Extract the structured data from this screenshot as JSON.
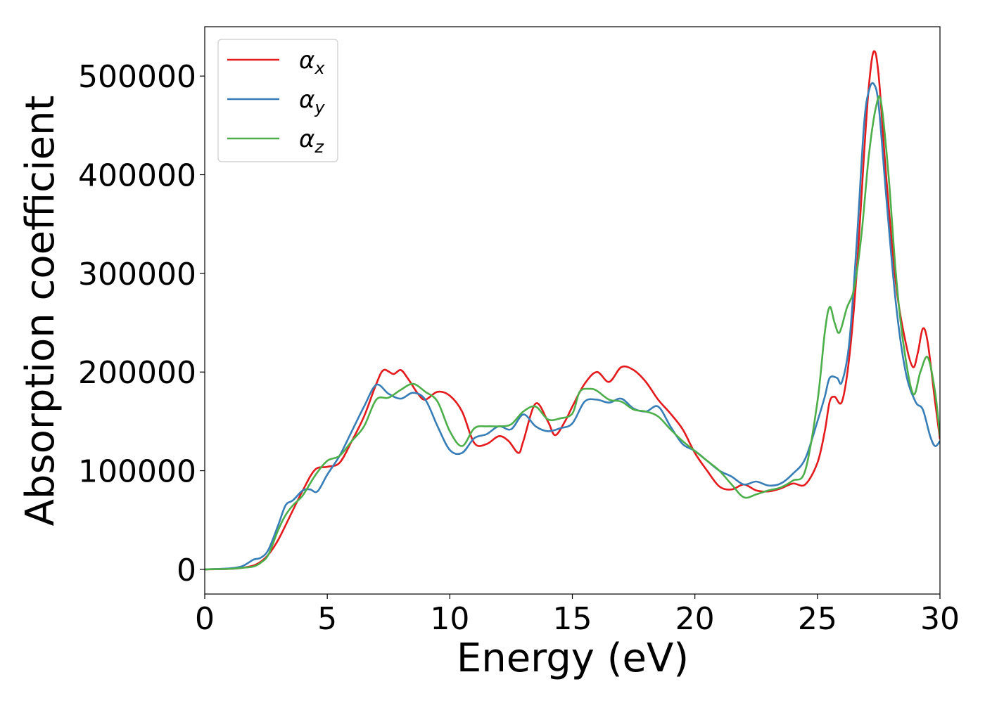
{
  "chart_data": {
    "type": "line",
    "xlabel": "Energy (eV)",
    "ylabel": "Absorption coefficient",
    "xlim": [
      0,
      30
    ],
    "ylim": [
      -25000,
      550000
    ],
    "xticks": [
      0,
      5,
      10,
      15,
      20,
      25,
      30
    ],
    "yticks": [
      0,
      100000,
      200000,
      300000,
      400000,
      500000
    ],
    "grid": false,
    "legend": "top-left",
    "series": [
      {
        "name": "α",
        "subscript": "x",
        "color": "#e41a1c",
        "x": [
          0,
          1,
          1.5,
          2,
          2.3,
          2.6,
          3,
          3.5,
          4,
          4.5,
          5,
          5.5,
          6,
          6.5,
          7,
          7.3,
          7.7,
          8,
          8.3,
          8.7,
          9,
          9.5,
          10,
          10.5,
          11,
          11.5,
          12,
          12.4,
          12.8,
          13,
          13.5,
          14,
          14.3,
          14.7,
          15,
          15.5,
          16,
          16.5,
          17,
          17.5,
          18,
          18.5,
          19,
          19.5,
          20,
          20.5,
          21,
          21.5,
          22,
          22.5,
          23,
          23.5,
          24,
          24.5,
          25,
          25.3,
          25.5,
          25.7,
          26,
          26.3,
          26.6,
          26.9,
          27.1,
          27.3,
          27.5,
          27.8,
          28.2,
          28.6,
          28.9,
          29.1,
          29.3,
          29.5,
          29.8,
          30
        ],
        "y": [
          0,
          500,
          1500,
          4000,
          8000,
          15000,
          30000,
          55000,
          80000,
          101000,
          104000,
          108000,
          130000,
          155000,
          188000,
          202000,
          198000,
          202000,
          193000,
          178000,
          172000,
          180000,
          176000,
          160000,
          128000,
          127000,
          135000,
          130000,
          118000,
          130000,
          168000,
          150000,
          136000,
          150000,
          165000,
          188000,
          200000,
          190000,
          205000,
          202000,
          190000,
          172000,
          158000,
          142000,
          118000,
          100000,
          84000,
          81000,
          86000,
          80000,
          79000,
          82000,
          87000,
          86000,
          108000,
          140000,
          170000,
          175000,
          170000,
          215000,
          300000,
          420000,
          490000,
          525000,
          500000,
          400000,
          290000,
          230000,
          205000,
          220000,
          244000,
          230000,
          170000,
          132000
        ]
      },
      {
        "name": "α",
        "subscript": "y",
        "color": "#377eb8",
        "x": [
          0,
          1,
          1.5,
          1.8,
          2,
          2.3,
          2.6,
          3,
          3.3,
          3.6,
          4,
          4.3,
          4.6,
          5,
          5.5,
          6,
          6.5,
          7,
          7.5,
          8,
          8.5,
          9,
          9.5,
          10,
          10.5,
          11,
          11.5,
          12,
          12.5,
          13,
          13.5,
          14,
          14.5,
          15,
          15.5,
          16,
          16.5,
          17,
          17.5,
          18,
          18.5,
          19,
          19.5,
          20,
          20.5,
          21,
          21.5,
          22,
          22.5,
          23,
          23.5,
          24,
          24.5,
          25,
          25.3,
          25.5,
          25.8,
          26,
          26.3,
          26.6,
          26.9,
          27.1,
          27.3,
          27.5,
          27.8,
          28.2,
          28.6,
          29,
          29.3,
          29.6,
          29.8,
          30
        ],
        "y": [
          0,
          1000,
          3000,
          7000,
          10000,
          12000,
          20000,
          45000,
          65000,
          70000,
          80000,
          81000,
          79000,
          96000,
          115000,
          140000,
          165000,
          187000,
          178000,
          173000,
          179000,
          172000,
          145000,
          121000,
          118000,
          133000,
          137000,
          145000,
          142000,
          157000,
          145000,
          140000,
          143000,
          148000,
          170000,
          172000,
          169000,
          173000,
          163000,
          160000,
          165000,
          145000,
          127000,
          120000,
          110000,
          100000,
          94000,
          86000,
          89000,
          85000,
          87000,
          97000,
          112000,
          150000,
          175000,
          194000,
          194000,
          190000,
          230000,
          330000,
          450000,
          485000,
          492000,
          470000,
          380000,
          270000,
          200000,
          170000,
          162000,
          135000,
          125000,
          130000
        ]
      },
      {
        "name": "α",
        "subscript": "z",
        "color": "#4daf4a",
        "x": [
          0,
          1,
          1.5,
          2,
          2.3,
          2.6,
          3,
          3.3,
          3.6,
          4,
          4.5,
          5,
          5.5,
          6,
          6.5,
          7,
          7.5,
          8,
          8.5,
          9,
          9.5,
          10,
          10.5,
          11,
          11.5,
          12,
          12.5,
          13,
          13.5,
          14,
          14.5,
          15,
          15.3,
          15.7,
          16,
          16.5,
          17,
          17.5,
          18,
          18.5,
          19,
          19.5,
          20,
          20.5,
          21,
          21.5,
          22,
          22.5,
          23,
          23.5,
          24,
          24.5,
          25,
          25.3,
          25.5,
          25.7,
          25.9,
          26.2,
          26.5,
          26.8,
          27.1,
          27.4,
          27.6,
          27.9,
          28.2,
          28.5,
          28.9,
          29.2,
          29.5,
          29.8,
          30
        ],
        "y": [
          0,
          500,
          1500,
          3000,
          7000,
          15000,
          40000,
          55000,
          65000,
          75000,
          95000,
          110000,
          115000,
          130000,
          145000,
          172000,
          174000,
          182000,
          188000,
          180000,
          170000,
          140000,
          125000,
          143000,
          145000,
          145000,
          147000,
          160000,
          165000,
          152000,
          153000,
          158000,
          180000,
          183000,
          181000,
          172000,
          170000,
          162000,
          160000,
          155000,
          142000,
          130000,
          120000,
          110000,
          100000,
          86000,
          73000,
          76000,
          80000,
          83000,
          90000,
          100000,
          170000,
          240000,
          266000,
          250000,
          240000,
          265000,
          285000,
          340000,
          420000,
          470000,
          473000,
          400000,
          300000,
          230000,
          178000,
          200000,
          215000,
          180000,
          135000
        ]
      }
    ]
  }
}
